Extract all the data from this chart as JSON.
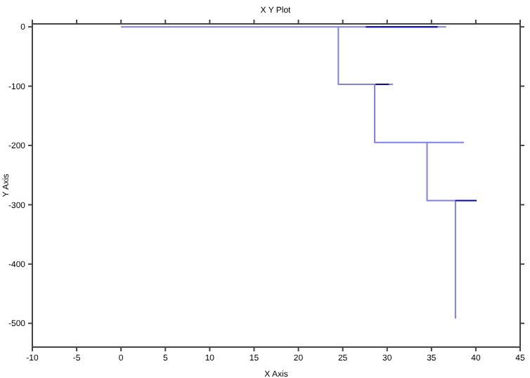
{
  "chart_data": {
    "type": "line",
    "title": "X Y Plot",
    "xlabel": "X Axis",
    "ylabel": "Y Axis",
    "series": [
      {
        "color": "#7f7ff0",
        "x": [
          0,
          36.6,
          24.5,
          24.5,
          30.6,
          28.6,
          28.6,
          38.6,
          34.5,
          34.5,
          37.7,
          37.7
        ],
        "values": [
          0,
          0,
          0,
          -97,
          -97,
          -97,
          -195,
          -195,
          -195,
          -293,
          -293,
          -492
        ]
      },
      {
        "color": "#0000e0",
        "x": [
          27.6,
          35.7,
          null,
          28.7,
          30.2,
          null,
          37.7,
          40.1
        ],
        "values": [
          0,
          0,
          null,
          -97,
          -97,
          null,
          -293,
          -293
        ]
      }
    ],
    "xlim": [
      -10,
      45
    ],
    "xticks": [
      -10,
      -5,
      0,
      5,
      10,
      15,
      20,
      25,
      30,
      35,
      40,
      45
    ],
    "ylim": [
      -540,
      5
    ],
    "yticks": [
      -500,
      -400,
      -300,
      -200,
      -100,
      0
    ],
    "grid": false,
    "marker": "none",
    "line_style": "solid"
  }
}
